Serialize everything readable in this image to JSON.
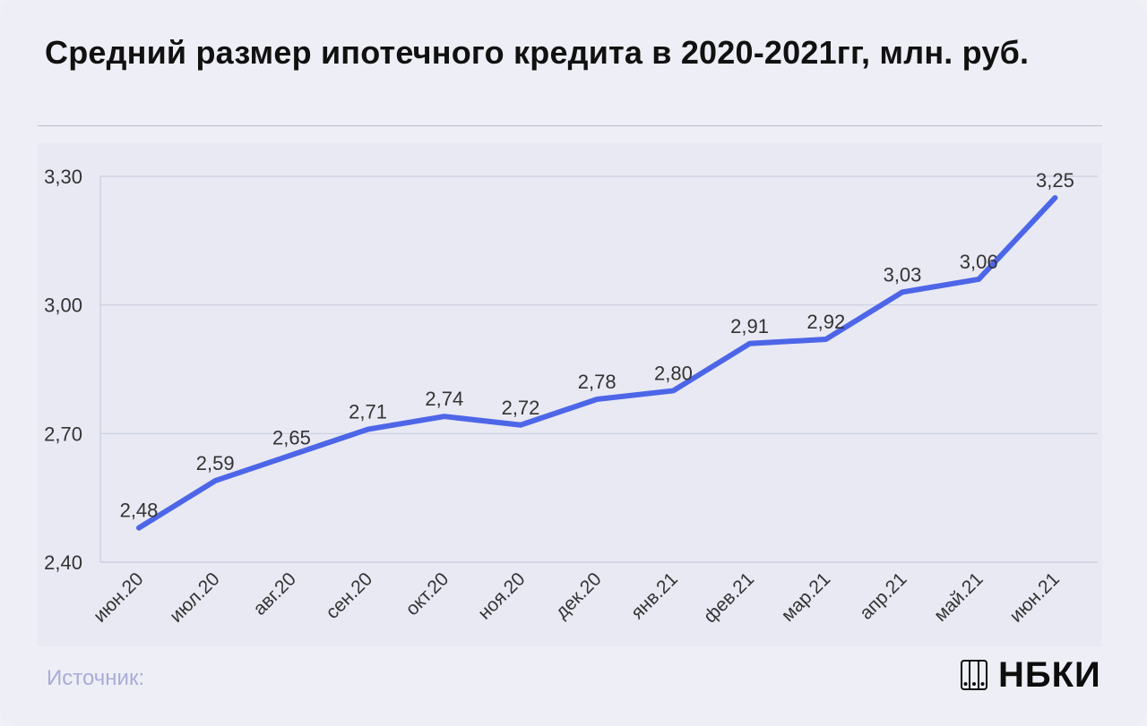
{
  "title": "Средний размер ипотечного кредита в 2020-2021гг,  млн. руб.",
  "source_label": "Источник:",
  "logo": {
    "text": "НБКИ",
    "icon": "nbki-logo-icon"
  },
  "colors": {
    "line": "#4d66e8",
    "grid": "#c9cce0",
    "plot_bg": "#e8e9f3",
    "text": "#333333"
  },
  "chart_data": {
    "type": "line",
    "categories": [
      "июн.20",
      "июл.20",
      "авг.20",
      "сен.20",
      "окт.20",
      "ноя.20",
      "дек.20",
      "янв.21",
      "фев.21",
      "мар.21",
      "апр.21",
      "май.21",
      "июн.21"
    ],
    "values": [
      2.48,
      2.59,
      2.65,
      2.71,
      2.74,
      2.72,
      2.78,
      2.8,
      2.91,
      2.92,
      3.03,
      3.06,
      3.25
    ],
    "data_labels": [
      "2,48",
      "2,59",
      "2,65",
      "2,71",
      "2,74",
      "2,72",
      "2,78",
      "2,80",
      "2,91",
      "2,92",
      "3,03",
      "3,06",
      "3,25"
    ],
    "y_ticks": [
      2.4,
      2.7,
      3.0,
      3.3
    ],
    "y_tick_labels": [
      "2,40",
      "2,70",
      "3,00",
      "3,30"
    ],
    "ylim": [
      2.4,
      3.3
    ],
    "grid": true,
    "legend": "none"
  }
}
